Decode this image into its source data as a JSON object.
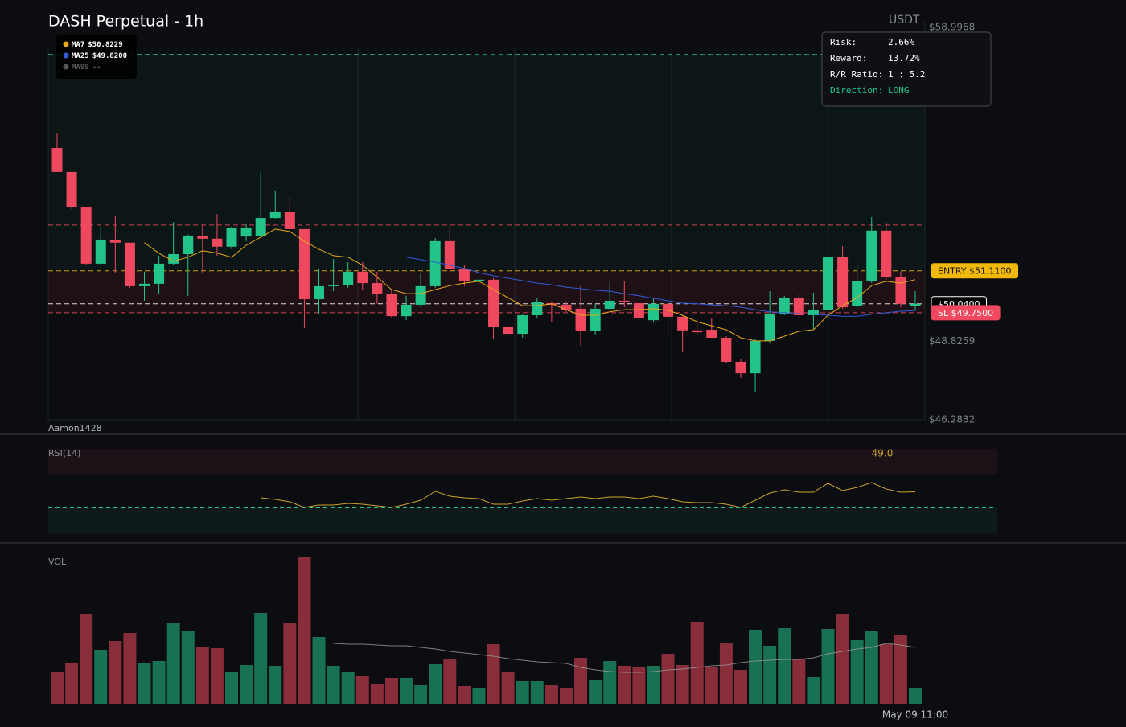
{
  "chart_data": [
    {
      "type": "candlestick",
      "title": "DASH Perpetual - 1h",
      "quote": "USDT",
      "watermark": "Aamon1428",
      "up_color": "#22c489",
      "down_color": "#f0485e",
      "ylim": [
        46.2832,
        58.9968
      ],
      "yticks": [
        {
          "value": 58.9968,
          "label": "$58.9968"
        },
        {
          "value": 48.8259,
          "label": "$48.8259"
        },
        {
          "value": 46.2832,
          "label": "$46.2832"
        }
      ],
      "open": [
        55.09,
        54.31,
        53.16,
        51.34,
        52.12,
        52.02,
        50.61,
        50.69,
        51.34,
        51.65,
        52.25,
        52.15,
        51.89,
        52.22,
        52.25,
        52.82,
        53.03,
        52.46,
        50.19,
        50.61,
        50.66,
        51.08,
        50.71,
        50.35,
        49.64,
        50.01,
        50.61,
        52.07,
        51.18,
        50.77,
        50.82,
        49.28,
        49.07,
        49.67,
        50.06,
        50.01,
        49.88,
        49.15,
        49.88,
        50.14,
        50.06,
        49.51,
        50.04,
        49.62,
        49.18,
        49.2,
        48.94,
        48.16,
        47.79,
        48.84,
        49.72,
        50.22,
        49.67,
        49.83,
        51.55,
        49.96,
        50.77,
        52.41,
        50.9,
        49.98
      ],
      "high": [
        55.56,
        54.31,
        53.16,
        52.54,
        52.9,
        52.02,
        51.08,
        51.6,
        52.69,
        52.28,
        52.59,
        52.95,
        52.54,
        52.64,
        54.31,
        53.71,
        53.53,
        52.46,
        51.18,
        51.49,
        51.39,
        51.39,
        51.08,
        50.5,
        50.3,
        51.03,
        52.17,
        52.59,
        51.29,
        51.03,
        50.87,
        49.36,
        49.72,
        50.24,
        50.09,
        50.09,
        50.66,
        50.04,
        50.77,
        50.77,
        50.09,
        50.24,
        50.09,
        49.67,
        49.51,
        49.57,
        48.99,
        48.26,
        48.89,
        50.45,
        50.3,
        50.35,
        50.4,
        51.6,
        51.91,
        51.29,
        52.85,
        52.69,
        51.08,
        50.45
      ],
      "low": [
        54.31,
        53.11,
        51.29,
        51.29,
        51.03,
        50.56,
        50.14,
        50.35,
        51.29,
        50.3,
        51.03,
        51.6,
        51.81,
        52.07,
        52.17,
        52.8,
        52.38,
        49.25,
        49.72,
        50.45,
        50.56,
        50.5,
        50.04,
        49.57,
        49.51,
        49.93,
        50.56,
        51.08,
        50.61,
        50.66,
        48.89,
        48.99,
        48.94,
        49.57,
        49.46,
        49.78,
        48.68,
        49.05,
        49.83,
        49.93,
        49.51,
        49.46,
        48.99,
        48.47,
        49.05,
        48.94,
        48.11,
        47.64,
        47.17,
        48.79,
        49.67,
        49.62,
        49.2,
        49.78,
        49.88,
        49.88,
        50.71,
        50.82,
        49.93,
        49.83
      ],
      "close": [
        54.31,
        53.16,
        51.34,
        52.12,
        52.02,
        50.61,
        50.69,
        51.34,
        51.65,
        52.25,
        52.15,
        51.89,
        52.51,
        52.51,
        52.82,
        53.03,
        52.46,
        50.19,
        50.61,
        50.66,
        51.08,
        50.71,
        50.35,
        49.64,
        50.01,
        50.61,
        52.07,
        51.18,
        50.77,
        50.82,
        49.28,
        49.07,
        49.67,
        50.09,
        50.01,
        49.85,
        49.15,
        49.88,
        50.14,
        50.09,
        49.57,
        50.04,
        49.62,
        49.18,
        49.12,
        48.94,
        48.16,
        47.79,
        48.84,
        49.72,
        50.22,
        49.67,
        49.83,
        51.55,
        49.93,
        50.77,
        52.41,
        50.9,
        50.04,
        50.04
      ],
      "series": [
        {
          "name": "MA7",
          "legend_value": "$50.8229",
          "color": "#e6a817",
          "values": [
            null,
            null,
            null,
            null,
            null,
            null,
            52.02,
            51.68,
            51.42,
            51.55,
            51.76,
            51.68,
            51.55,
            51.94,
            52.2,
            52.46,
            52.38,
            52.07,
            51.81,
            51.6,
            51.55,
            51.29,
            50.9,
            50.5,
            50.37,
            50.37,
            50.5,
            50.63,
            50.71,
            50.77,
            50.5,
            50.24,
            49.98,
            49.98,
            50.04,
            49.85,
            49.67,
            49.67,
            49.78,
            49.85,
            49.85,
            49.88,
            49.83,
            49.67,
            49.46,
            49.33,
            49.2,
            48.94,
            48.84,
            48.84,
            48.99,
            49.15,
            49.2,
            49.67,
            49.98,
            50.24,
            50.63,
            50.77,
            50.71,
            50.8229
          ]
        },
        {
          "name": "MA25",
          "legend_value": "$49.8200",
          "color": "#2f5bd8",
          "values": [
            null,
            null,
            null,
            null,
            null,
            null,
            null,
            null,
            null,
            null,
            null,
            null,
            null,
            null,
            null,
            null,
            null,
            null,
            null,
            null,
            null,
            null,
            null,
            null,
            51.55,
            51.47,
            51.39,
            51.29,
            51.18,
            51.05,
            50.95,
            50.87,
            50.79,
            50.71,
            50.66,
            50.58,
            50.53,
            50.48,
            50.45,
            50.37,
            50.3,
            50.22,
            50.14,
            50.06,
            50.04,
            50.01,
            49.98,
            49.93,
            49.85,
            49.78,
            49.75,
            49.72,
            49.7,
            49.67,
            49.64,
            49.64,
            49.7,
            49.75,
            49.8,
            49.82
          ]
        },
        {
          "name": "MA99",
          "legend_value": "--",
          "color": "#555555",
          "values": [
            null,
            null,
            null,
            null,
            null,
            null,
            null,
            null,
            null,
            null,
            null,
            null,
            null,
            null,
            null,
            null,
            null,
            null,
            null,
            null,
            null,
            null,
            null,
            null,
            null,
            null,
            null,
            null,
            null,
            null,
            null,
            null,
            null,
            null,
            null,
            null,
            null,
            null,
            null,
            null,
            null,
            null,
            null,
            null,
            null,
            null,
            null,
            null,
            null,
            null,
            null,
            null,
            null,
            null,
            null,
            null,
            null,
            null,
            null,
            null
          ]
        }
      ],
      "levels": {
        "take_profit": {
          "value": 58.12,
          "color": "#22c489"
        },
        "resistance": {
          "value": 52.59,
          "color": "#f0485e"
        },
        "entry": {
          "value": 51.11,
          "label": "ENTRY $51.1100",
          "color": "#f0b90b",
          "text_color": "#111111",
          "fill": "#f0b90b"
        },
        "current": {
          "value": 50.04,
          "label": "$50.0400",
          "color": "#ffffff",
          "text_color": "#ffffff",
          "fill": "#000000"
        },
        "stop_loss": {
          "value": 49.75,
          "label": "SL $49.7500",
          "color": "#f0485e",
          "text_color": "#ffffff",
          "fill": "#f0485e"
        }
      },
      "stats": [
        {
          "label": "Risk:",
          "value": "2.66%",
          "color": "#ffffff"
        },
        {
          "label": "Reward:",
          "value": "13.72%",
          "color": "#ffffff"
        },
        {
          "label": "R/R Ratio:",
          "value": "1 : 5.2",
          "color": "#ffffff"
        },
        {
          "label": "Direction:",
          "value": "LONG",
          "color": "#22c489"
        }
      ]
    },
    {
      "type": "line",
      "title": "RSI(14)",
      "color": "#c9a227",
      "ylim": [
        0,
        100
      ],
      "levels": [
        {
          "value": 70,
          "color": "#f0485e",
          "dashed": true
        },
        {
          "value": 50,
          "color": "#555555",
          "dashed": false
        },
        {
          "value": 30,
          "color": "#22c489",
          "dashed": true
        }
      ],
      "values": [
        null,
        null,
        null,
        null,
        null,
        null,
        null,
        null,
        null,
        null,
        null,
        null,
        null,
        null,
        41.9,
        40.0,
        37.1,
        30.5,
        33.3,
        33.3,
        35.2,
        34.3,
        32.4,
        30.5,
        34.3,
        39.0,
        49.5,
        43.8,
        41.9,
        41.0,
        34.3,
        34.3,
        38.1,
        41.0,
        39.0,
        41.0,
        42.9,
        41.0,
        42.9,
        42.9,
        41.0,
        43.8,
        41.0,
        37.1,
        36.2,
        36.2,
        34.3,
        30.5,
        39.0,
        47.6,
        51.4,
        48.6,
        48.6,
        59.0,
        50.5,
        54.3,
        60.0,
        52.4,
        48.6,
        49
      ],
      "value_labels": [
        null,
        null,
        null,
        null,
        null,
        null,
        null,
        null,
        null,
        null,
        null,
        null,
        null,
        null,
        null,
        null,
        null,
        null,
        null,
        null,
        null,
        null,
        null,
        null,
        null,
        null,
        null,
        null,
        null,
        null,
        null,
        null,
        null,
        null,
        null,
        null,
        null,
        null,
        null,
        null,
        null,
        null,
        null,
        null,
        null,
        null,
        null,
        null,
        null,
        null,
        null,
        null,
        null,
        null,
        null,
        null,
        null,
        null,
        null,
        "49.0"
      ]
    },
    {
      "type": "bar",
      "title": "VOL",
      "ylim": [
        0,
        184
      ],
      "categories": [
        null,
        null,
        null,
        null,
        null,
        null,
        null,
        null,
        null,
        null,
        null,
        null,
        null,
        null,
        null,
        null,
        null,
        null,
        null,
        null,
        null,
        null,
        null,
        null,
        null,
        null,
        null,
        null,
        null,
        null,
        null,
        null,
        null,
        null,
        null,
        null,
        null,
        null,
        null,
        null,
        null,
        null,
        null,
        null,
        null,
        null,
        null,
        null,
        null,
        null,
        null,
        null,
        null,
        null,
        null,
        null,
        null,
        null,
        null,
        "May 09 11:00"
      ],
      "values": [
        40,
        51,
        112,
        68,
        79,
        89,
        52,
        54,
        101,
        91,
        71,
        70,
        41,
        49,
        114,
        48,
        101,
        184,
        84,
        48,
        40,
        36,
        26,
        33,
        33,
        24,
        50,
        56,
        23,
        20,
        75,
        41,
        29,
        29,
        24,
        21,
        58,
        31,
        54,
        48,
        47,
        48,
        63,
        49,
        103,
        47,
        76,
        43,
        92,
        73,
        95,
        56,
        34,
        94,
        112,
        80,
        91,
        75,
        86,
        21
      ],
      "ma": {
        "color": "#9a9a9a",
        "values": [
          null,
          null,
          null,
          null,
          null,
          null,
          null,
          null,
          null,
          null,
          null,
          null,
          null,
          null,
          null,
          null,
          null,
          null,
          null,
          76,
          75,
          75,
          74,
          73,
          73,
          71,
          69,
          66,
          64,
          62,
          60,
          57,
          55,
          53,
          52,
          51,
          46,
          43,
          41,
          40,
          40,
          41,
          43,
          44,
          46,
          48,
          49,
          52,
          54,
          55,
          56,
          56,
          58,
          63,
          66,
          69,
          71,
          76,
          74,
          71
        ]
      }
    }
  ]
}
